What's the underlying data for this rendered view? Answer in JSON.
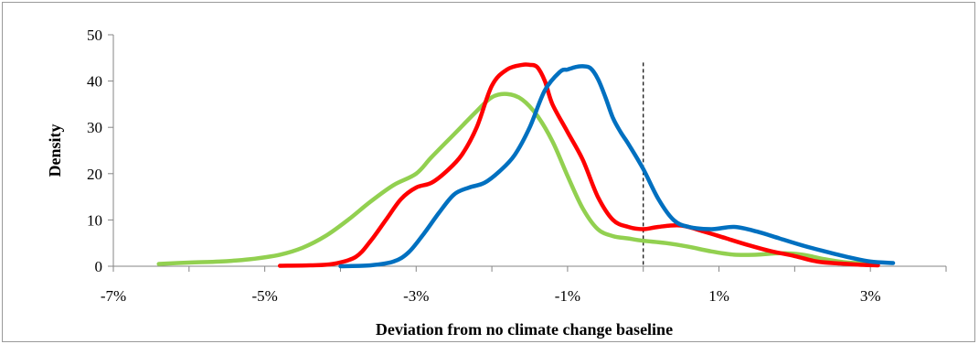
{
  "chart_data": {
    "type": "line",
    "title": "",
    "xlabel": "Deviation from no climate change baseline",
    "ylabel": "Density",
    "xlim": [
      -7,
      4
    ],
    "ylim": [
      0,
      50
    ],
    "x_ticks": [
      -7,
      -5,
      -3,
      -1,
      1,
      3
    ],
    "x_tick_labels": [
      "-7%",
      "-5%",
      "-3%",
      "-1%",
      "1%",
      "3%"
    ],
    "y_ticks": [
      0,
      10,
      20,
      30,
      40,
      50
    ],
    "y_tick_labels": [
      "0",
      "10",
      "20",
      "30",
      "40",
      "50"
    ],
    "grid": false,
    "legend": "none",
    "reference_line": {
      "x": 0,
      "style": "dashed",
      "color": "#000000",
      "y_top": 44
    },
    "series": [
      {
        "color": "#92d050",
        "x": [
          -6.4,
          -6.0,
          -5.6,
          -5.2,
          -4.8,
          -4.5,
          -4.2,
          -3.9,
          -3.6,
          -3.3,
          -3.0,
          -2.8,
          -2.5,
          -2.2,
          -2.0,
          -1.8,
          -1.6,
          -1.4,
          -1.2,
          -1.0,
          -0.8,
          -0.6,
          -0.4,
          -0.2,
          0.0,
          0.3,
          0.6,
          0.9,
          1.2,
          1.5,
          1.8,
          2.1,
          2.4,
          2.7,
          3.1
        ],
        "y": [
          0.5,
          0.8,
          1.0,
          1.5,
          2.5,
          4.0,
          6.5,
          10.0,
          14.0,
          17.5,
          20.0,
          23.5,
          28.5,
          33.5,
          36.5,
          37.2,
          36.0,
          32.5,
          27.0,
          19.5,
          12.5,
          8.0,
          6.5,
          6.0,
          5.5,
          5.0,
          4.2,
          3.2,
          2.5,
          2.5,
          2.8,
          2.5,
          1.5,
          0.8,
          0.5
        ]
      },
      {
        "color": "#ff0000",
        "x": [
          -4.8,
          -4.4,
          -4.1,
          -3.8,
          -3.6,
          -3.4,
          -3.2,
          -3.0,
          -2.8,
          -2.6,
          -2.4,
          -2.2,
          -2.0,
          -1.8,
          -1.6,
          -1.5,
          -1.4,
          -1.3,
          -1.2,
          -1.0,
          -0.8,
          -0.6,
          -0.4,
          -0.2,
          0.0,
          0.2,
          0.5,
          0.8,
          1.1,
          1.4,
          1.7,
          2.0,
          2.3,
          2.6,
          2.9,
          3.1
        ],
        "y": [
          0.1,
          0.2,
          0.5,
          2.0,
          5.5,
          10.0,
          14.5,
          17.0,
          18.0,
          20.5,
          24.0,
          30.0,
          39.0,
          42.5,
          43.5,
          43.5,
          43.0,
          40.0,
          35.0,
          29.0,
          23.0,
          15.0,
          10.0,
          8.5,
          8.0,
          8.5,
          8.8,
          7.5,
          6.0,
          4.5,
          3.2,
          2.2,
          1.0,
          0.6,
          0.3,
          0.2
        ]
      },
      {
        "color": "#0070c0",
        "x": [
          -4.0,
          -3.6,
          -3.3,
          -3.1,
          -2.9,
          -2.7,
          -2.5,
          -2.3,
          -2.1,
          -1.9,
          -1.7,
          -1.5,
          -1.3,
          -1.1,
          -1.0,
          -0.9,
          -0.8,
          -0.7,
          -0.6,
          -0.5,
          -0.4,
          -0.3,
          -0.2,
          0.0,
          0.2,
          0.4,
          0.6,
          0.9,
          1.2,
          1.5,
          1.8,
          2.1,
          2.4,
          2.7,
          3.0,
          3.3
        ],
        "y": [
          0.0,
          0.2,
          1.0,
          3.0,
          7.0,
          11.5,
          15.5,
          17.0,
          18.0,
          20.5,
          24.0,
          30.0,
          38.0,
          42.0,
          42.5,
          43.0,
          43.2,
          42.8,
          40.5,
          36.5,
          32.0,
          29.0,
          26.5,
          21.0,
          14.5,
          10.0,
          8.5,
          8.0,
          8.5,
          7.5,
          6.0,
          4.5,
          3.2,
          2.0,
          1.0,
          0.7
        ]
      }
    ]
  }
}
